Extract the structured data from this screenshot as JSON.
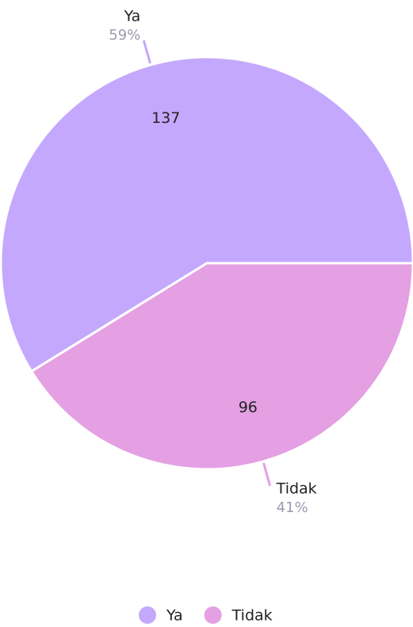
{
  "chart_data": {
    "type": "pie",
    "categories": [
      "Ya",
      "Tidak"
    ],
    "values": [
      137,
      96
    ],
    "percent_labels": [
      "59%",
      "41%"
    ],
    "colors": [
      "#c4a8fd",
      "#e4a0e3"
    ],
    "legend": "bottom"
  }
}
